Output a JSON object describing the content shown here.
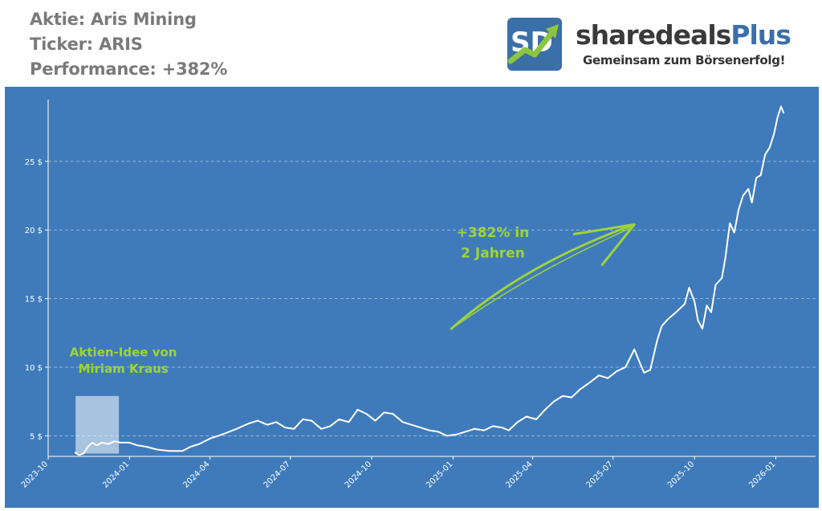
{
  "header": {
    "stock_line": "Aktie: Aris Mining",
    "ticker_line": "Ticker: ARIS",
    "performance_line": "Performance: +382%"
  },
  "logo": {
    "badge": "SD",
    "name_part1": "sharedeals",
    "name_part2": "Plus",
    "tagline": "Gemeinsam zum Börsenerfolg!"
  },
  "colors": {
    "plot_background": "#3f7bbb",
    "line": "#ffffff",
    "accent_green": "#9fd33a"
  },
  "chart_data": {
    "type": "line",
    "title": "",
    "xlabel": "",
    "ylabel": "",
    "y_unit": "$",
    "ylim": [
      3.5,
      29.5
    ],
    "yticks": [
      {
        "value": 5,
        "label": "5 $"
      },
      {
        "value": 10,
        "label": "10 $"
      },
      {
        "value": 15,
        "label": "15 $"
      },
      {
        "value": 20,
        "label": "20 $"
      },
      {
        "value": 25,
        "label": "25 $"
      }
    ],
    "xlim": [
      "2023-10-01",
      "2026-02-15"
    ],
    "xticks": [
      "2023-10",
      "2024-01",
      "2024-04",
      "2024-07",
      "2024-10",
      "2025-01",
      "2025-04",
      "2025-07",
      "2025-10",
      "2026-01"
    ],
    "grid": "horizontal",
    "series": [
      {
        "points": [
          [
            "2023-10-31",
            3.8
          ],
          [
            "2023-11-05",
            3.6
          ],
          [
            "2023-11-10",
            3.7
          ],
          [
            "2023-11-15",
            4.2
          ],
          [
            "2023-11-20",
            4.5
          ],
          [
            "2023-11-25",
            4.3
          ],
          [
            "2023-12-01",
            4.5
          ],
          [
            "2023-12-08",
            4.4
          ],
          [
            "2023-12-15",
            4.6
          ],
          [
            "2023-12-22",
            4.5
          ],
          [
            "2024-01-01",
            4.5
          ],
          [
            "2024-01-10",
            4.3
          ],
          [
            "2024-01-20",
            4.2
          ],
          [
            "2024-02-01",
            4.0
          ],
          [
            "2024-02-15",
            3.9
          ],
          [
            "2024-03-01",
            3.9
          ],
          [
            "2024-03-10",
            4.2
          ],
          [
            "2024-03-20",
            4.4
          ],
          [
            "2024-04-01",
            4.8
          ],
          [
            "2024-04-15",
            5.1
          ],
          [
            "2024-05-01",
            5.5
          ],
          [
            "2024-05-15",
            5.9
          ],
          [
            "2024-05-25",
            6.1
          ],
          [
            "2024-06-05",
            5.8
          ],
          [
            "2024-06-15",
            6.0
          ],
          [
            "2024-06-25",
            5.6
          ],
          [
            "2024-07-05",
            5.5
          ],
          [
            "2024-07-15",
            6.2
          ],
          [
            "2024-07-25",
            6.1
          ],
          [
            "2024-08-05",
            5.5
          ],
          [
            "2024-08-15",
            5.7
          ],
          [
            "2024-08-25",
            6.2
          ],
          [
            "2024-09-05",
            6.0
          ],
          [
            "2024-09-15",
            6.9
          ],
          [
            "2024-09-25",
            6.6
          ],
          [
            "2024-10-05",
            6.1
          ],
          [
            "2024-10-15",
            6.7
          ],
          [
            "2024-10-25",
            6.6
          ],
          [
            "2024-11-05",
            6.0
          ],
          [
            "2024-11-15",
            5.8
          ],
          [
            "2024-11-25",
            5.6
          ],
          [
            "2024-12-05",
            5.4
          ],
          [
            "2024-12-15",
            5.3
          ],
          [
            "2024-12-25",
            5.0
          ],
          [
            "2025-01-05",
            5.1
          ],
          [
            "2025-01-15",
            5.3
          ],
          [
            "2025-01-25",
            5.5
          ],
          [
            "2025-02-05",
            5.4
          ],
          [
            "2025-02-15",
            5.7
          ],
          [
            "2025-02-25",
            5.6
          ],
          [
            "2025-03-05",
            5.4
          ],
          [
            "2025-03-15",
            6.0
          ],
          [
            "2025-03-25",
            6.4
          ],
          [
            "2025-04-05",
            6.2
          ],
          [
            "2025-04-15",
            6.9
          ],
          [
            "2025-04-25",
            7.5
          ],
          [
            "2025-05-05",
            7.9
          ],
          [
            "2025-05-15",
            7.8
          ],
          [
            "2025-05-25",
            8.4
          ],
          [
            "2025-06-05",
            8.9
          ],
          [
            "2025-06-15",
            9.4
          ],
          [
            "2025-06-25",
            9.2
          ],
          [
            "2025-07-05",
            9.7
          ],
          [
            "2025-07-15",
            10.0
          ],
          [
            "2025-07-25",
            11.3
          ],
          [
            "2025-08-01",
            10.2
          ],
          [
            "2025-08-05",
            9.6
          ],
          [
            "2025-08-12",
            9.8
          ],
          [
            "2025-08-20",
            12.0
          ],
          [
            "2025-08-25",
            13.0
          ],
          [
            "2025-09-01",
            13.5
          ],
          [
            "2025-09-10",
            14.0
          ],
          [
            "2025-09-20",
            14.6
          ],
          [
            "2025-09-25",
            15.8
          ],
          [
            "2025-10-01",
            14.8
          ],
          [
            "2025-10-05",
            13.4
          ],
          [
            "2025-10-10",
            12.8
          ],
          [
            "2025-10-15",
            14.5
          ],
          [
            "2025-10-20",
            14.0
          ],
          [
            "2025-10-25",
            16.0
          ],
          [
            "2025-11-01",
            16.5
          ],
          [
            "2025-11-05",
            18.0
          ],
          [
            "2025-11-10",
            20.5
          ],
          [
            "2025-11-15",
            19.8
          ],
          [
            "2025-11-20",
            21.5
          ],
          [
            "2025-11-25",
            22.5
          ],
          [
            "2025-12-01",
            23.0
          ],
          [
            "2025-12-05",
            22.0
          ],
          [
            "2025-12-10",
            23.8
          ],
          [
            "2025-12-15",
            24.0
          ],
          [
            "2025-12-20",
            25.5
          ],
          [
            "2025-12-25",
            26.0
          ],
          [
            "2025-12-30",
            27.0
          ],
          [
            "2026-01-03",
            28.2
          ],
          [
            "2026-01-07",
            29.0
          ],
          [
            "2026-01-10",
            28.5
          ]
        ]
      }
    ],
    "annotations": [
      {
        "text_line1": "Aktien-Idee von",
        "text_line2": "Miriam Kraus",
        "position": "lower-left"
      },
      {
        "text_line1": "+382% in",
        "text_line2": "2 Jahren",
        "position": "center"
      }
    ],
    "highlight_range": [
      "2023-11-01",
      "2023-12-20"
    ]
  }
}
